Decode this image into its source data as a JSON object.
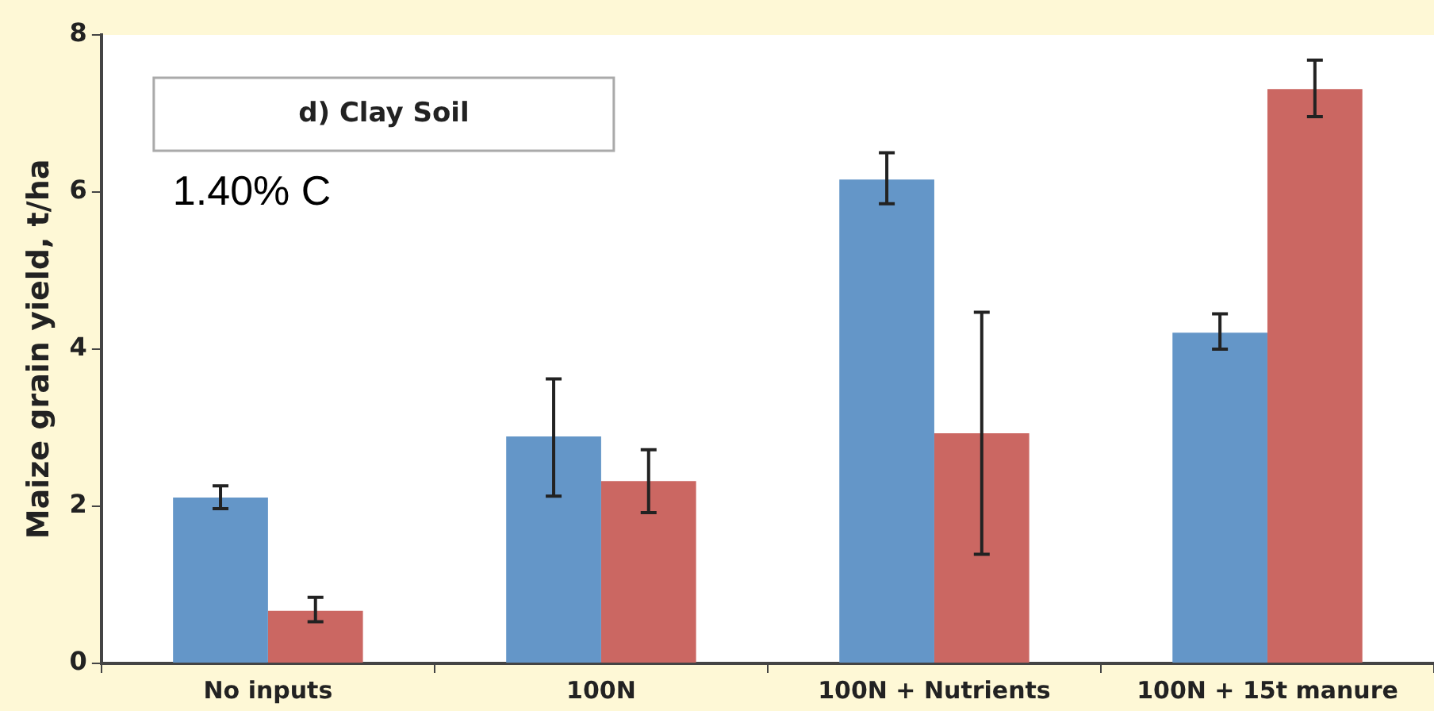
{
  "chart_data": {
    "type": "bar",
    "ylabel": "Maize grain yield, t/ha",
    "categories": [
      "No inputs",
      "100N",
      "100N + Nutrients",
      "100N + 15t manure"
    ],
    "series": [
      {
        "color": "#6496c8",
        "values": [
          2.11,
          2.89,
          6.16,
          4.21
        ],
        "errors": [
          [
            1.97,
            2.26
          ],
          [
            2.13,
            3.62
          ],
          [
            5.85,
            6.5
          ],
          [
            4.0,
            4.45
          ]
        ]
      },
      {
        "color": "#cb6762",
        "values": [
          0.67,
          2.32,
          2.93,
          7.31
        ],
        "errors": [
          [
            0.53,
            0.84
          ],
          [
            1.92,
            2.72
          ],
          [
            1.39,
            4.47
          ],
          [
            6.96,
            7.68
          ]
        ]
      }
    ],
    "ylim": [
      0,
      8
    ],
    "yticks": [
      0,
      2,
      4,
      6,
      8
    ],
    "grid": false,
    "legend": false,
    "annotations": [
      "d) Clay Soil",
      "1.40% C"
    ]
  }
}
